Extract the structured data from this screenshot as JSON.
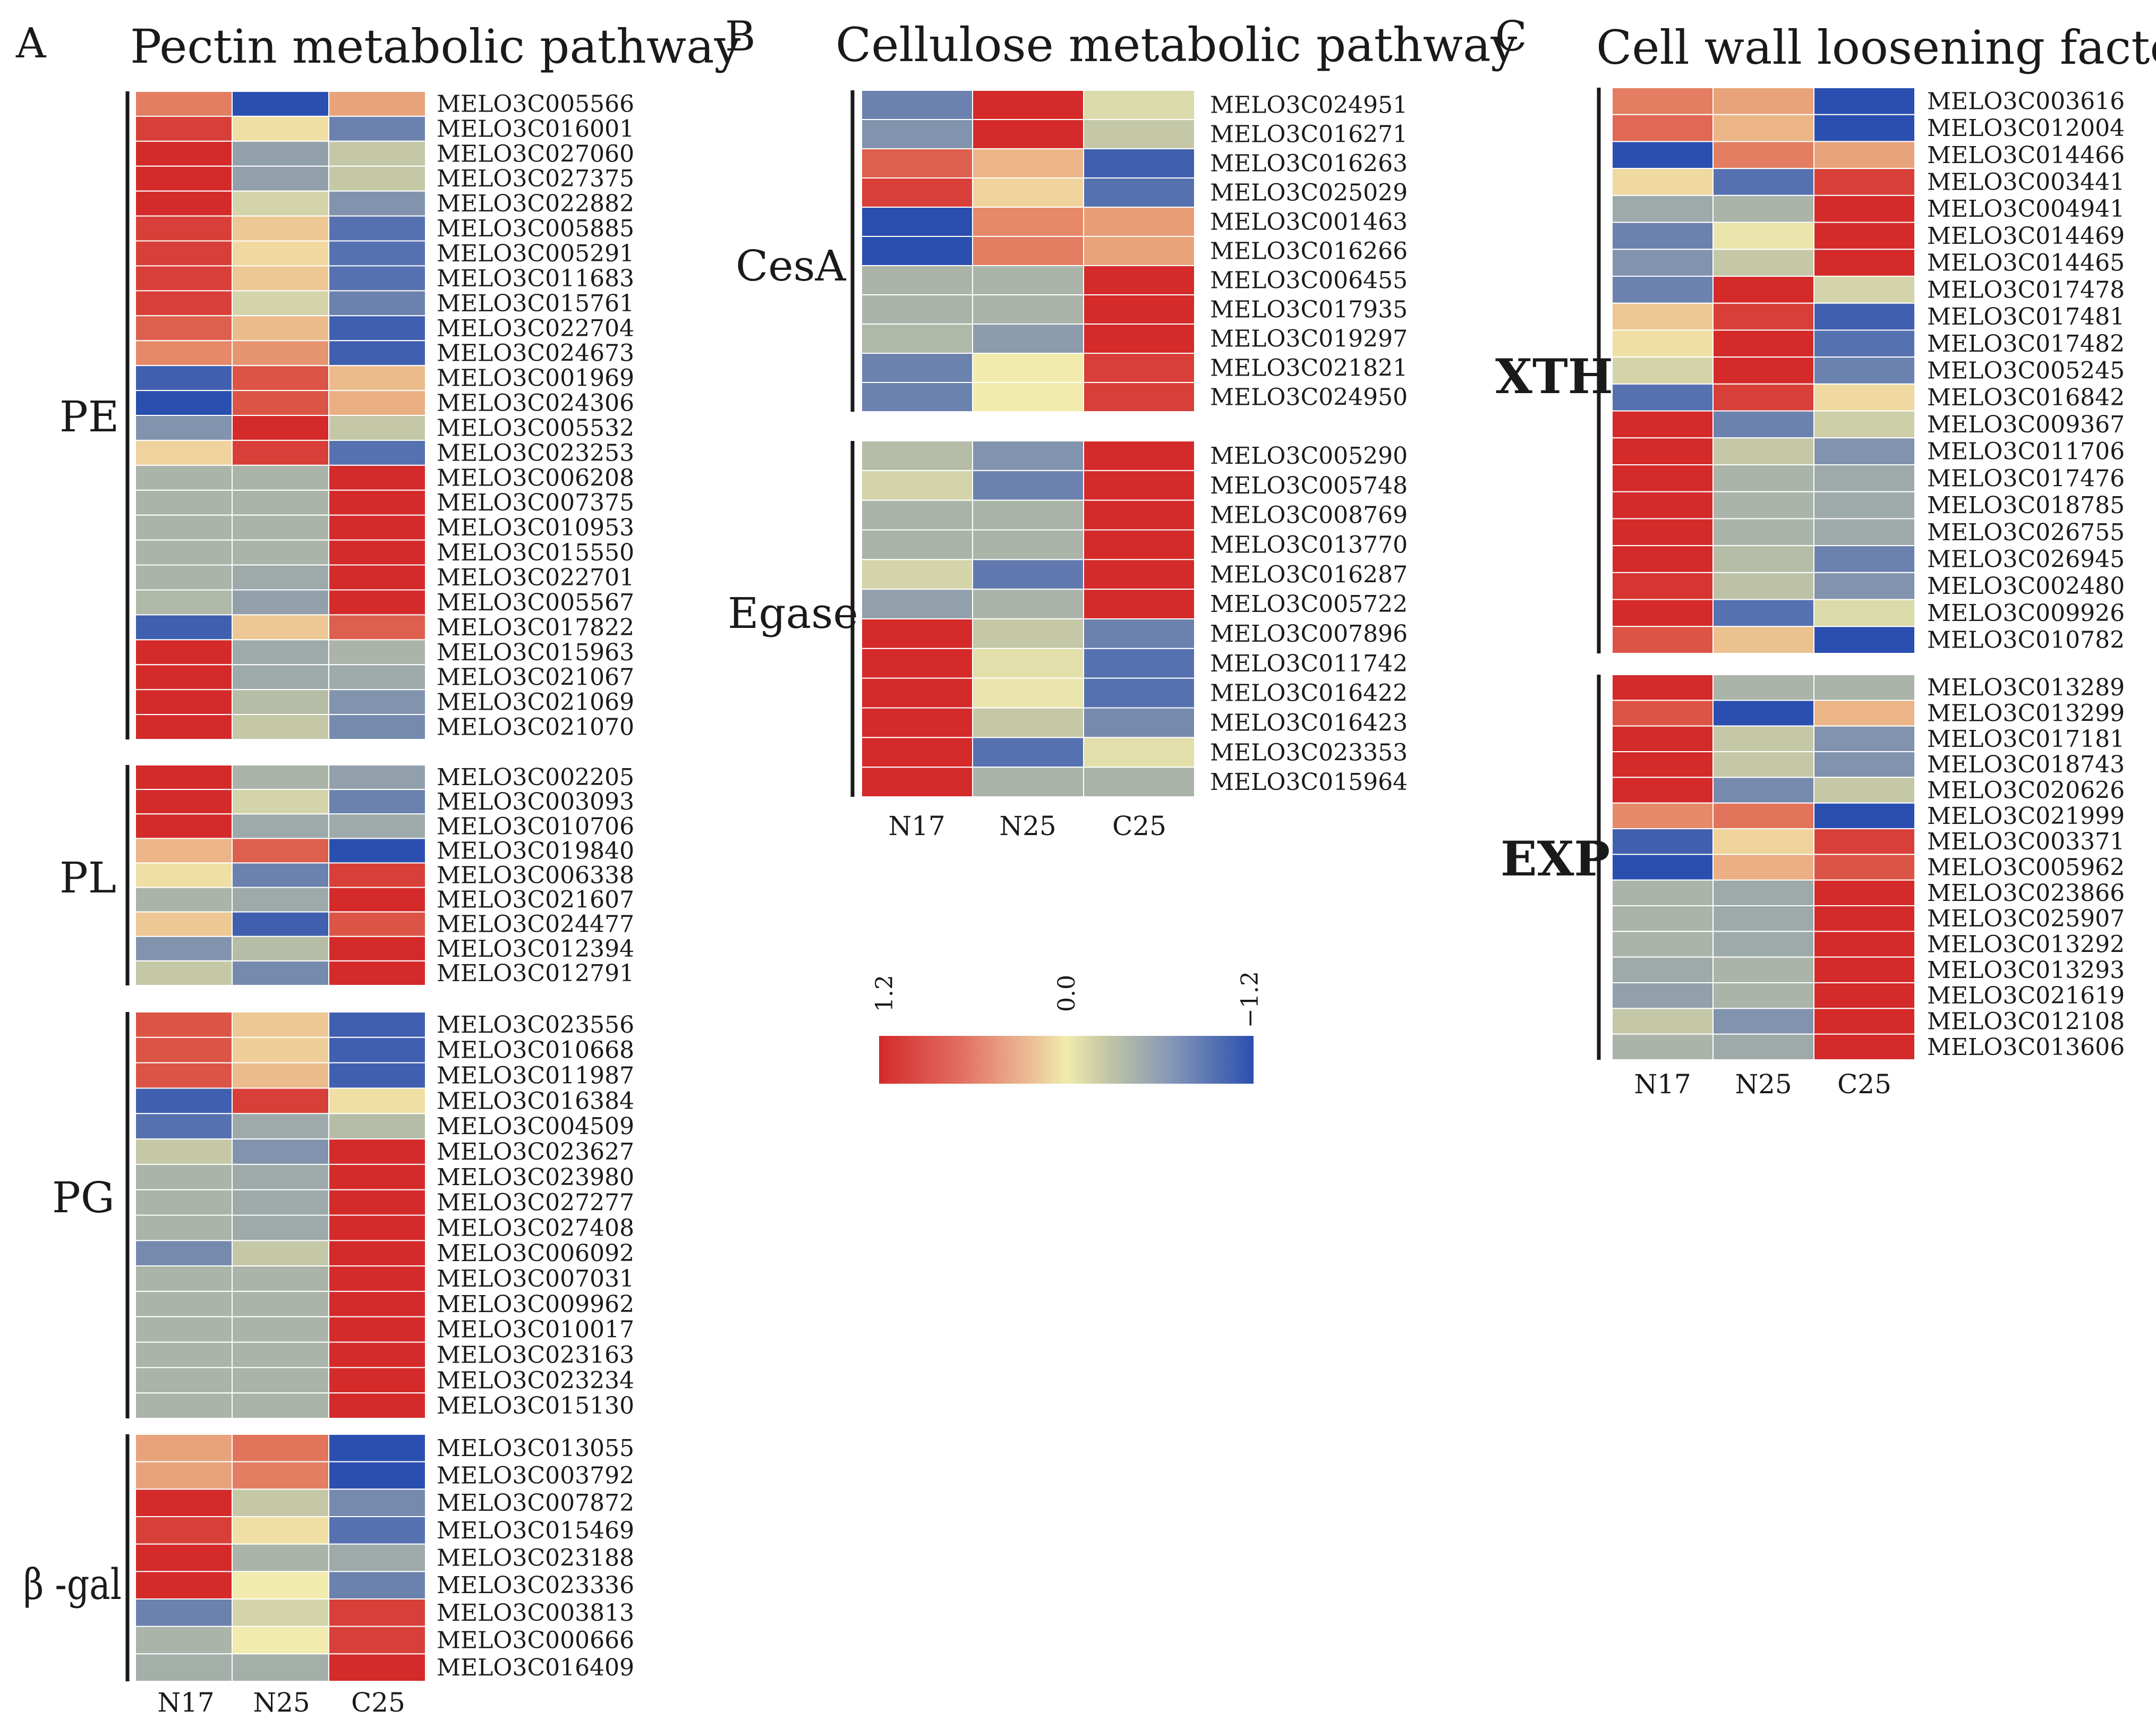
{
  "figure": {
    "columns": [
      "N17",
      "N25",
      "C25"
    ],
    "panels": [
      {
        "letter": "A",
        "title": "Pectin metabolic pathway",
        "groups": [
          {
            "label": "PE",
            "genes": [
              "MELO3C005566",
              "MELO3C016001",
              "MELO3C027060",
              "MELO3C027375",
              "MELO3C022882",
              "MELO3C005885",
              "MELO3C005291",
              "MELO3C011683",
              "MELO3C015761",
              "MELO3C022704",
              "MELO3C024673",
              "MELO3C001969",
              "MELO3C024306",
              "MELO3C005532",
              "MELO3C023253",
              "MELO3C006208",
              "MELO3C007375",
              "MELO3C010953",
              "MELO3C015550",
              "MELO3C022701",
              "MELO3C005567",
              "MELO3C017822",
              "MELO3C015963",
              "MELO3C021067",
              "MELO3C021069",
              "MELO3C021070"
            ]
          },
          {
            "label": "PL",
            "genes": [
              "MELO3C002205",
              "MELO3C003093",
              "MELO3C010706",
              "MELO3C019840",
              "MELO3C006338",
              "MELO3C021607",
              "MELO3C024477",
              "MELO3C012394",
              "MELO3C012791"
            ]
          },
          {
            "label": "PG",
            "genes": [
              "MELO3C023556",
              "MELO3C010668",
              "MELO3C011987",
              "MELO3C016384",
              "MELO3C004509",
              "MELO3C023627",
              "MELO3C023980",
              "MELO3C027277",
              "MELO3C027408",
              "MELO3C006092",
              "MELO3C007031",
              "MELO3C009962",
              "MELO3C010017",
              "MELO3C023163",
              "MELO3C023234",
              "MELO3C015130"
            ]
          },
          {
            "label": "β -gal",
            "genes": [
              "MELO3C013055",
              "MELO3C003792",
              "MELO3C007872",
              "MELO3C015469",
              "MELO3C023188",
              "MELO3C023336",
              "MELO3C003813",
              "MELO3C000666",
              "MELO3C016409"
            ]
          }
        ]
      },
      {
        "letter": "B",
        "title": "Cellulose metabolic pathway",
        "groups": [
          {
            "label": "CesA",
            "genes": [
              "MELO3C024951",
              "MELO3C016271",
              "MELO3C016263",
              "MELO3C025029",
              "MELO3C001463",
              "MELO3C016266",
              "MELO3C006455",
              "MELO3C017935",
              "MELO3C019297",
              "MELO3C021821",
              "MELO3C024950"
            ]
          },
          {
            "label": "Egase",
            "genes": [
              "MELO3C005290",
              "MELO3C005748",
              "MELO3C008769",
              "MELO3C013770",
              "MELO3C016287",
              "MELO3C005722",
              "MELO3C007896",
              "MELO3C011742",
              "MELO3C016422",
              "MELO3C016423",
              "MELO3C023353",
              "MELO3C015964"
            ]
          }
        ]
      },
      {
        "letter": "C",
        "title": "Cell wall loosening factors",
        "groups": [
          {
            "label": "XTH",
            "genes": [
              "MELO3C003616",
              "MELO3C012004",
              "MELO3C014466",
              "MELO3C003441",
              "MELO3C004941",
              "MELO3C014469",
              "MELO3C014465",
              "MELO3C017478",
              "MELO3C017481",
              "MELO3C017482",
              "MELO3C005245",
              "MELO3C016842",
              "MELO3C009367",
              "MELO3C011706",
              "MELO3C017476",
              "MELO3C018785",
              "MELO3C026755",
              "MELO3C026945",
              "MELO3C002480",
              "MELO3C009926",
              "MELO3C010782"
            ]
          },
          {
            "label": "EXP",
            "genes": [
              "MELO3C013289",
              "MELO3C013299",
              "MELO3C017181",
              "MELO3C018743",
              "MELO3C020626",
              "MELO3C021999",
              "MELO3C003371",
              "MELO3C005962",
              "MELO3C023866",
              "MELO3C025907",
              "MELO3C013292",
              "MELO3C013293",
              "MELO3C021619",
              "MELO3C012108",
              "MELO3C013606"
            ]
          }
        ]
      }
    ],
    "legend": {
      "max_label": "1.2",
      "mid_label": "0.0",
      "min_label": "−1.2"
    }
  },
  "chart_data": {
    "type": "heatmap",
    "columns": [
      "N17",
      "N25",
      "C25"
    ],
    "color_scale": {
      "min": -1.2,
      "max": 1.2,
      "min_color": "#2b4fb0",
      "mid_color": "#f1ebad",
      "max_color": "#d42a2a",
      "neutral_color": "#8d9cad"
    },
    "panels": [
      {
        "title": "Pectin metabolic pathway",
        "groups": [
          {
            "label": "PE",
            "rows": [
              [
                0.8,
                -1.2,
                0.6
              ],
              [
                1.1,
                0.1,
                -0.9
              ],
              [
                1.2,
                -0.7,
                -0.3
              ],
              [
                1.2,
                -0.7,
                -0.3
              ],
              [
                1.2,
                -0.2,
                -0.8
              ],
              [
                1.1,
                0.3,
                -1.0
              ],
              [
                1.1,
                0.15,
                -1.0
              ],
              [
                1.1,
                0.3,
                -1.0
              ],
              [
                1.1,
                -0.2,
                -0.9
              ],
              [
                0.95,
                0.4,
                -1.1
              ],
              [
                0.75,
                0.7,
                -1.1
              ],
              [
                -1.1,
                1.0,
                0.4
              ],
              [
                -1.2,
                1.0,
                0.5
              ],
              [
                -0.8,
                1.2,
                -0.3
              ],
              [
                0.2,
                1.1,
                -1.0
              ],
              [
                -0.5,
                -0.5,
                1.2
              ],
              [
                -0.5,
                -0.5,
                1.2
              ],
              [
                -0.5,
                -0.5,
                1.2
              ],
              [
                -0.5,
                -0.5,
                1.2
              ],
              [
                -0.5,
                -0.6,
                1.2
              ],
              [
                -0.45,
                -0.7,
                1.2
              ],
              [
                -1.1,
                0.3,
                0.95
              ],
              [
                1.2,
                -0.6,
                -0.5
              ],
              [
                1.2,
                -0.6,
                -0.6
              ],
              [
                1.2,
                -0.4,
                -0.8
              ],
              [
                1.2,
                -0.3,
                -0.85
              ]
            ]
          },
          {
            "label": "PL",
            "rows": [
              [
                1.2,
                -0.5,
                -0.7
              ],
              [
                1.2,
                -0.2,
                -0.9
              ],
              [
                1.2,
                -0.6,
                -0.6
              ],
              [
                0.45,
                0.95,
                -1.2
              ],
              [
                0.1,
                -0.9,
                1.1
              ],
              [
                -0.5,
                -0.6,
                1.2
              ],
              [
                0.3,
                -1.1,
                1.0
              ],
              [
                -0.8,
                -0.4,
                1.2
              ],
              [
                -0.3,
                -0.85,
                1.2
              ]
            ]
          },
          {
            "label": "PG",
            "rows": [
              [
                1.0,
                0.3,
                -1.1
              ],
              [
                1.0,
                0.25,
                -1.1
              ],
              [
                1.0,
                0.4,
                -1.1
              ],
              [
                -1.1,
                1.1,
                0.1
              ],
              [
                -1.0,
                -0.6,
                -0.4
              ],
              [
                -0.3,
                -0.8,
                1.2
              ],
              [
                -0.5,
                -0.6,
                1.2
              ],
              [
                -0.5,
                -0.6,
                1.2
              ],
              [
                -0.5,
                -0.6,
                1.2
              ],
              [
                -0.85,
                -0.3,
                1.2
              ],
              [
                -0.5,
                -0.5,
                1.2
              ],
              [
                -0.5,
                -0.5,
                1.2
              ],
              [
                -0.5,
                -0.5,
                1.2
              ],
              [
                -0.5,
                -0.5,
                1.2
              ],
              [
                -0.5,
                -0.5,
                1.2
              ],
              [
                -0.5,
                -0.5,
                1.2
              ]
            ]
          },
          {
            "label": "β -gal",
            "rows": [
              [
                0.6,
                0.85,
                -1.2
              ],
              [
                0.6,
                0.8,
                -1.2
              ],
              [
                1.2,
                -0.3,
                -0.85
              ],
              [
                1.1,
                0.1,
                -1.0
              ],
              [
                1.2,
                -0.5,
                -0.6
              ],
              [
                1.2,
                0.0,
                -0.9
              ],
              [
                -0.9,
                -0.2,
                1.1
              ],
              [
                -0.5,
                0.0,
                1.1
              ],
              [
                -0.55,
                -0.55,
                1.2
              ]
            ]
          }
        ]
      },
      {
        "title": "Cellulose metabolic pathway",
        "groups": [
          {
            "label": "CesA",
            "rows": [
              [
                -0.9,
                1.2,
                -0.15
              ],
              [
                -0.8,
                1.2,
                -0.3
              ],
              [
                0.95,
                0.45,
                -1.1
              ],
              [
                1.1,
                0.2,
                -1.0
              ],
              [
                -1.2,
                0.75,
                0.65
              ],
              [
                -1.2,
                0.8,
                0.6
              ],
              [
                -0.5,
                -0.5,
                1.2
              ],
              [
                -0.5,
                -0.5,
                1.2
              ],
              [
                -0.45,
                -0.75,
                1.2
              ],
              [
                -0.9,
                0.0,
                1.1
              ],
              [
                -0.9,
                0.0,
                1.1
              ]
            ]
          },
          {
            "label": "Egase",
            "rows": [
              [
                -0.4,
                -0.8,
                1.2
              ],
              [
                -0.2,
                -0.9,
                1.2
              ],
              [
                -0.5,
                -0.5,
                1.2
              ],
              [
                -0.5,
                -0.5,
                1.2
              ],
              [
                -0.2,
                -0.95,
                1.2
              ],
              [
                -0.7,
                -0.5,
                1.2
              ],
              [
                1.2,
                -0.3,
                -0.9
              ],
              [
                1.2,
                -0.1,
                -1.0
              ],
              [
                1.2,
                -0.05,
                -1.0
              ],
              [
                1.2,
                -0.3,
                -0.85
              ],
              [
                1.2,
                -1.0,
                -0.1
              ],
              [
                1.2,
                -0.5,
                -0.5
              ]
            ]
          }
        ]
      },
      {
        "title": "Cell wall loosening factors",
        "groups": [
          {
            "label": "XTH",
            "rows": [
              [
                0.8,
                0.6,
                -1.2
              ],
              [
                0.9,
                0.45,
                -1.2
              ],
              [
                -1.2,
                0.8,
                0.6
              ],
              [
                0.15,
                -1.0,
                1.1
              ],
              [
                -0.6,
                -0.5,
                1.2
              ],
              [
                -0.9,
                -0.05,
                1.2
              ],
              [
                -0.8,
                -0.3,
                1.2
              ],
              [
                -0.9,
                1.2,
                -0.2
              ],
              [
                0.3,
                1.1,
                -1.1
              ],
              [
                0.1,
                1.2,
                -1.0
              ],
              [
                -0.2,
                1.2,
                -0.9
              ],
              [
                -1.0,
                1.1,
                0.15
              ],
              [
                1.2,
                -0.9,
                -0.25
              ],
              [
                1.2,
                -0.3,
                -0.8
              ],
              [
                1.2,
                -0.5,
                -0.6
              ],
              [
                1.2,
                -0.5,
                -0.6
              ],
              [
                1.2,
                -0.5,
                -0.6
              ],
              [
                1.2,
                -0.4,
                -0.9
              ],
              [
                1.15,
                -0.35,
                -0.8
              ],
              [
                1.2,
                -1.0,
                -0.15
              ],
              [
                1.0,
                0.35,
                -1.2
              ]
            ]
          },
          {
            "label": "EXP",
            "rows": [
              [
                1.2,
                -0.5,
                -0.5
              ],
              [
                1.0,
                -1.2,
                0.45
              ],
              [
                1.2,
                -0.3,
                -0.8
              ],
              [
                1.2,
                -0.3,
                -0.8
              ],
              [
                1.2,
                -0.85,
                -0.3
              ],
              [
                0.75,
                0.85,
                -1.2
              ],
              [
                -1.1,
                0.2,
                1.1
              ],
              [
                -1.2,
                0.5,
                1.0
              ],
              [
                -0.5,
                -0.6,
                1.2
              ],
              [
                -0.5,
                -0.6,
                1.2
              ],
              [
                -0.5,
                -0.6,
                1.2
              ],
              [
                -0.6,
                -0.5,
                1.2
              ],
              [
                -0.7,
                -0.5,
                1.2
              ],
              [
                -0.3,
                -0.8,
                1.2
              ],
              [
                -0.5,
                -0.6,
                1.2
              ]
            ]
          }
        ]
      }
    ]
  }
}
